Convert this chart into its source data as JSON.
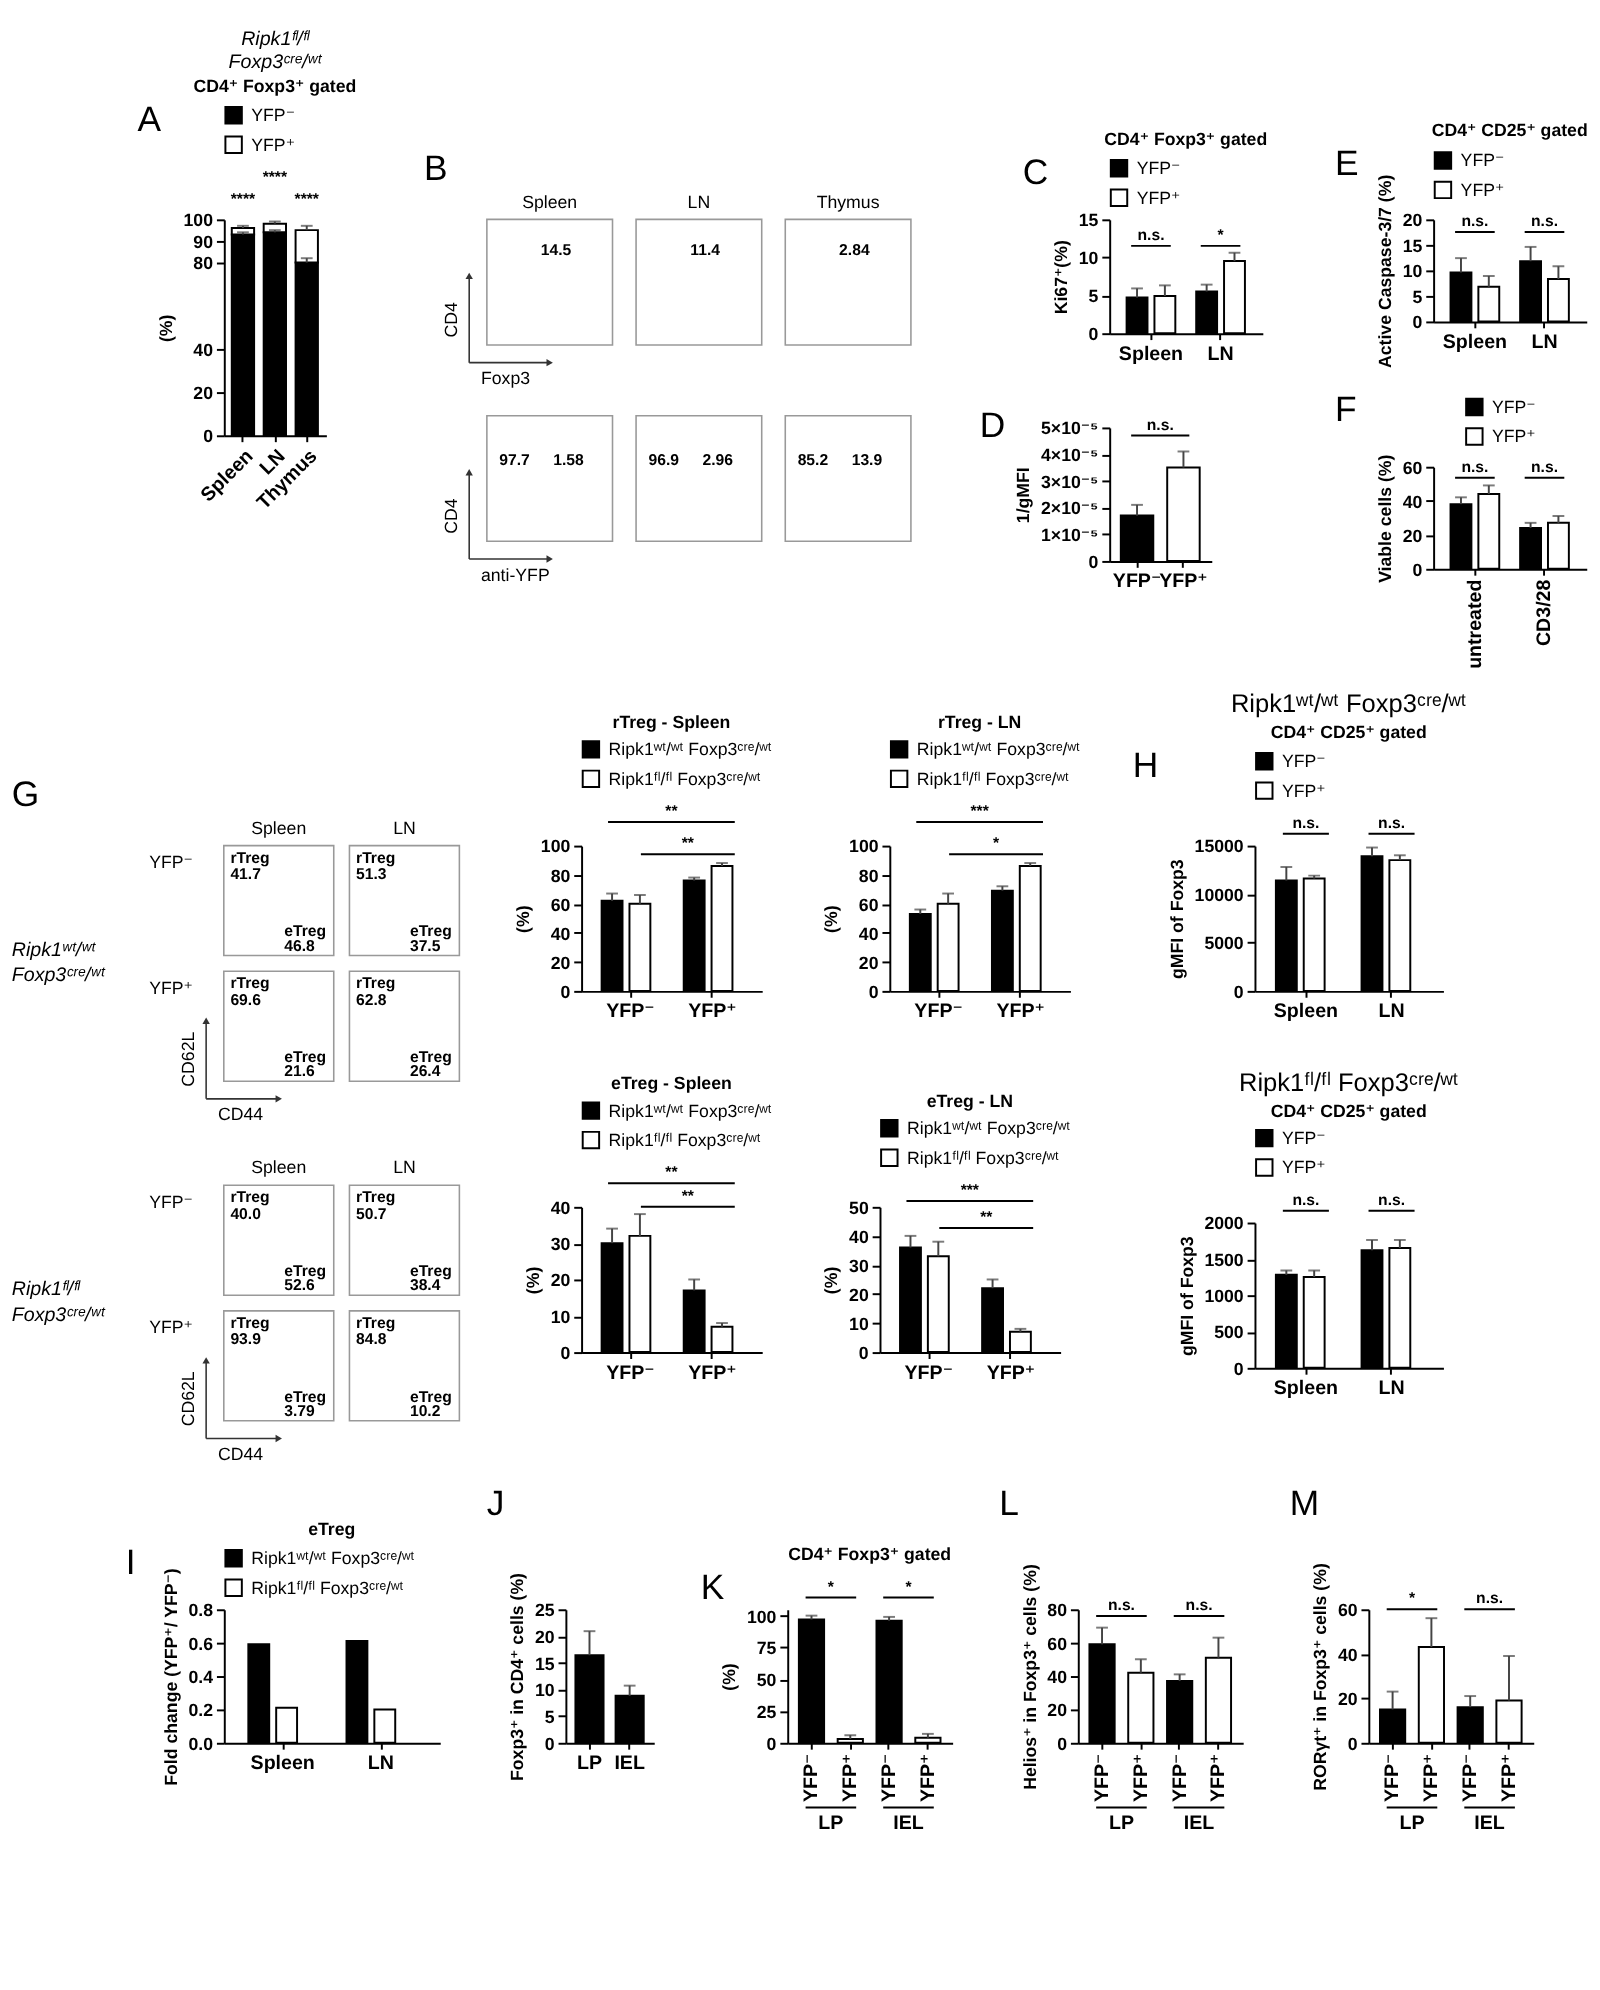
{
  "chart_data": [
    {
      "type": "bar",
      "title": "Ripk1ᶠˡ/ᶠˡ Foxp3ᶜʳᵉ/ʷᵗ",
      "subtitle": "CD4⁺ Foxp3⁺ gated",
      "ylabel": "(%)",
      "categories": [
        "Spleen",
        "LN",
        "Thymus"
      ],
      "stacked": true,
      "series": [
        {
          "name": "YFP⁻",
          "color": "#000000",
          "values": [
            93,
            94,
            80
          ],
          "errors": [
            [
              93,
              94
            ],
            [
              94,
              95
            ],
            [
              80,
              82
            ]
          ]
        },
        {
          "name": "YFP⁺",
          "color": "#ffffff",
          "values": [
            3,
            4,
            15
          ],
          "errors": [
            [
              96,
              97
            ],
            [
              98,
              99
            ],
            [
              95,
              97
            ]
          ]
        }
      ],
      "ylim": [
        0,
        100
      ],
      "yticks": [
        0,
        20,
        40,
        80,
        90,
        100
      ],
      "legend": "top",
      "annotations": [
        "A",
        "****",
        "****",
        "****"
      ]
    },
    {
      "type": "other",
      "annotations": [
        "B",
        "Spleen",
        "LN",
        "Thymus",
        "14.5",
        "11.4",
        "2.84",
        "CD4",
        "Foxp3",
        "97.7",
        "1.58",
        "96.9",
        "2.96",
        "85.2",
        "13.9",
        "CD4",
        "anti-YFP"
      ]
    },
    {
      "type": "bar",
      "title": "CD4⁺ Foxp3⁺ gated",
      "ylabel": "Ki67⁺(%)",
      "categories": [
        "Spleen",
        "LN"
      ],
      "series": [
        {
          "name": "YFP⁻",
          "color": "#000000",
          "values": [
            4.7,
            5.5
          ],
          "errors": [
            [
              4.7,
              5.9
            ],
            [
              5.5,
              6.4
            ]
          ]
        },
        {
          "name": "YFP⁺",
          "color": "#ffffff",
          "values": [
            4.9,
            9.5
          ],
          "errors": [
            [
              4.9,
              6.3
            ],
            [
              9.5,
              10.6
            ]
          ]
        }
      ],
      "ylim": [
        0,
        15
      ],
      "yticks": [
        0,
        5,
        10,
        15
      ],
      "legend": "top",
      "annotations": [
        "C",
        "n.s.",
        "*"
      ]
    },
    {
      "type": "bar",
      "ylabel": "1/gMFI",
      "categories": [
        "YFP⁻",
        "YFP⁺"
      ],
      "series": [
        {
          "colors": [
            "#000000",
            "#ffffff"
          ],
          "values": [
            1.7e-05,
            3.5e-05
          ],
          "errors": [
            [
              1.7e-05,
              2.1e-05
            ],
            [
              3.5e-05,
              4.1e-05
            ]
          ]
        }
      ],
      "ylim": [
        0,
        5e-05
      ],
      "yticks": [
        0,
        {
          "value": 1e-05,
          "label": "1×10⁻⁵"
        },
        {
          "value": 2e-05,
          "label": "2×10⁻⁵"
        },
        {
          "value": 3e-05,
          "label": "3×10⁻⁵"
        },
        {
          "value": 4e-05,
          "label": "4×10⁻⁵"
        },
        {
          "value": 5e-05,
          "label": "5×10⁻⁵"
        }
      ],
      "annotations": [
        "D",
        "n.s."
      ]
    },
    {
      "type": "bar",
      "title": "CD4⁺ CD25⁺ gated",
      "ylabel": "Active Caspase-3/7 (%)",
      "categories": [
        "Spleen",
        "LN"
      ],
      "series": [
        {
          "name": "YFP⁻",
          "color": "#000000",
          "values": [
            9.6,
            11.8
          ],
          "errors": [
            [
              9.6,
              12.4
            ],
            [
              11.8,
              14.6
            ]
          ]
        },
        {
          "name": "YFP⁺",
          "color": "#ffffff",
          "values": [
            6.8,
            8.3
          ],
          "errors": [
            [
              6.8,
              8.9
            ],
            [
              8.3,
              10.8
            ]
          ]
        }
      ],
      "ylim": [
        0,
        20
      ],
      "yticks": [
        0,
        5,
        10,
        15,
        20
      ],
      "legend": "top",
      "annotations": [
        "E",
        "n.s.",
        "n.s."
      ]
    },
    {
      "type": "bar",
      "ylabel": "Viable cells (%)",
      "categories": [
        "untreated",
        "CD3/28"
      ],
      "series": [
        {
          "name": "YFP⁻",
          "color": "#000000",
          "values": [
            38,
            24
          ],
          "errors": [
            [
              38,
              42
            ],
            [
              24,
              27
            ]
          ]
        },
        {
          "name": "YFP⁺",
          "color": "#ffffff",
          "values": [
            44,
            27
          ],
          "errors": [
            [
              44,
              49
            ],
            [
              27,
              31
            ]
          ]
        }
      ],
      "ylim": [
        0,
        60
      ],
      "yticks": [
        0,
        20,
        40,
        60
      ],
      "legend": "top",
      "annotations": [
        "F",
        "n.s.",
        "n.s."
      ]
    },
    {
      "type": "other",
      "annotations": [
        "G",
        "Spleen",
        "LN",
        "Ripk1ʷᵗ/ʷᵗ Foxp3ᶜʳᵉ/ʷᵗ",
        "YFP⁻",
        "rTreg",
        "41.7",
        "eTreg",
        "46.8",
        "rTreg",
        "51.3",
        "eTreg",
        "37.5",
        "YFP⁺",
        "rTreg",
        "69.6",
        "eTreg",
        "21.6",
        "rTreg",
        "62.8",
        "eTreg",
        "26.4",
        "CD62L",
        "CD44"
      ]
    },
    {
      "type": "other",
      "annotations": [
        "Spleen",
        "LN",
        "Ripk1ᶠˡ/ᶠˡ Foxp3ᶜʳᵉ/ʷᵗ",
        "YFP⁻",
        "rTreg",
        "40.0",
        "eTreg",
        "52.6",
        "rTreg",
        "50.7",
        "eTreg",
        "38.4",
        "YFP⁺",
        "rTreg",
        "93.9",
        "eTreg",
        "3.79",
        "rTreg",
        "84.8",
        "eTreg",
        "10.2",
        "CD62L",
        "CD44"
      ]
    },
    {
      "type": "bar",
      "title": "rTreg - Spleen",
      "ylabel": "(%)",
      "categories": [
        "YFP⁻",
        "YFP⁺"
      ],
      "series": [
        {
          "name": "Ripk1ʷᵗ/ʷᵗ Foxp3ᶜʳᵉ/ʷᵗ",
          "color": "#000000",
          "values": [
            62,
            76
          ],
          "errors": [
            [
              62,
              67
            ],
            [
              76,
              78
            ]
          ]
        },
        {
          "name": "Ripk1ᶠˡ/ᶠˡ Foxp3ᶜʳᵉ/ʷᵗ",
          "color": "#ffffff",
          "values": [
            60,
            86
          ],
          "errors": [
            [
              60,
              66
            ],
            [
              86,
              88
            ]
          ]
        }
      ],
      "ylim": [
        0,
        100
      ],
      "yticks": [
        0,
        20,
        40,
        60,
        80,
        100
      ],
      "legend": "top",
      "annotations": [
        "**",
        "**"
      ]
    },
    {
      "type": "bar",
      "title": "rTreg - LN",
      "ylabel": "(%)",
      "categories": [
        "YFP⁻",
        "YFP⁺"
      ],
      "series": [
        {
          "name": "Ripk1ʷᵗ/ʷᵗ Foxp3ᶜʳᵉ/ʷᵗ",
          "color": "#000000",
          "values": [
            53,
            69
          ],
          "errors": [
            [
              53,
              56
            ],
            [
              69,
              72
            ]
          ]
        },
        {
          "name": "Ripk1ᶠˡ/ᶠˡ Foxp3ᶜʳᵉ/ʷᵗ",
          "color": "#ffffff",
          "values": [
            60,
            86
          ],
          "errors": [
            [
              60,
              67
            ],
            [
              86,
              88
            ]
          ]
        }
      ],
      "ylim": [
        0,
        100
      ],
      "yticks": [
        0,
        20,
        40,
        60,
        80,
        100
      ],
      "legend": "top",
      "annotations": [
        "***",
        "*"
      ]
    },
    {
      "type": "bar",
      "title": "eTreg - Spleen",
      "ylabel": "(%)",
      "categories": [
        "YFP⁻",
        "YFP⁺"
      ],
      "series": [
        {
          "name": "Ripk1ʷᵗ/ʷᵗ Foxp3ᶜʳᵉ/ʷᵗ",
          "color": "#000000",
          "values": [
            30,
            17
          ],
          "errors": [
            [
              30,
              34
            ],
            [
              17,
              20
            ]
          ]
        },
        {
          "name": "Ripk1ᶠˡ/ᶠˡ Foxp3ᶜʳᵉ/ʷᵗ",
          "color": "#ffffff",
          "values": [
            32,
            7
          ],
          "errors": [
            [
              32,
              38
            ],
            [
              7,
              8
            ]
          ]
        }
      ],
      "ylim": [
        0,
        40
      ],
      "yticks": [
        0,
        10,
        20,
        30,
        40
      ],
      "legend": "top",
      "annotations": [
        "**",
        "**"
      ]
    },
    {
      "type": "bar",
      "title": "eTreg - LN",
      "ylabel": "(%)",
      "categories": [
        "YFP⁻",
        "YFP⁺"
      ],
      "series": [
        {
          "name": "Ripk1ʷᵗ/ʷᵗ Foxp3ᶜʳᵉ/ʷᵗ",
          "color": "#000000",
          "values": [
            36,
            22
          ],
          "errors": [
            [
              36,
              40
            ],
            [
              22,
              25
            ]
          ]
        },
        {
          "name": "Ripk1ᶠˡ/ᶠˡ Foxp3ᶜʳᵉ/ʷᵗ",
          "color": "#ffffff",
          "values": [
            33,
            7
          ],
          "errors": [
            [
              33,
              38
            ],
            [
              7,
              8
            ]
          ]
        }
      ],
      "ylim": [
        0,
        50
      ],
      "yticks": [
        0,
        10,
        20,
        30,
        40,
        50
      ],
      "legend": "top",
      "annotations": [
        "***",
        "**"
      ]
    },
    {
      "type": "bar",
      "title": "Ripk1ʷᵗ/ʷᵗ Foxp3ᶜʳᵉ/ʷᵗ",
      "subtitle": "CD4⁺ CD25⁺ gated",
      "ylabel": "gMFI of Foxp3",
      "categories": [
        "Spleen",
        "LN"
      ],
      "series": [
        {
          "name": "YFP⁻",
          "color": "#000000",
          "values": [
            11400,
            13900
          ],
          "errors": [
            [
              11400,
              12800
            ],
            [
              13900,
              14800
            ]
          ]
        },
        {
          "name": "YFP⁺",
          "color": "#ffffff",
          "values": [
            11600,
            13500
          ],
          "errors": [
            [
              11600,
              11900
            ],
            [
              13500,
              14000
            ]
          ]
        }
      ],
      "ylim": [
        0,
        15000
      ],
      "yticks": [
        0,
        5000,
        10000,
        15000
      ],
      "legend": "top",
      "annotations": [
        "H",
        "n.s.",
        "n.s."
      ]
    },
    {
      "type": "bar",
      "title": "Ripk1ᶠˡ/ᶠˡ Foxp3ᶜʳᵉ/ʷᵗ",
      "subtitle": "CD4⁺ CD25⁺ gated",
      "ylabel": "gMFI of Foxp3",
      "categories": [
        "Spleen",
        "LN"
      ],
      "series": [
        {
          "name": "YFP⁻",
          "color": "#000000",
          "values": [
            1280,
            1620
          ],
          "errors": [
            [
              1280,
              1340
            ],
            [
              1620,
              1760
            ]
          ]
        },
        {
          "name": "YFP⁺",
          "color": "#ffffff",
          "values": [
            1250,
            1650
          ],
          "errors": [
            [
              1250,
              1340
            ],
            [
              1650,
              1760
            ]
          ]
        }
      ],
      "ylim": [
        0,
        2000
      ],
      "yticks": [
        0,
        500,
        1000,
        1500,
        2000
      ],
      "legend": "top",
      "annotations": [
        "n.s.",
        "n.s."
      ]
    },
    {
      "type": "bar",
      "title": "eTreg",
      "ylabel": "Fold change (YFP⁺/ YFP⁻)",
      "categories": [
        "Spleen",
        "LN"
      ],
      "series": [
        {
          "name": "Ripk1ʷᵗ/ʷᵗ Foxp3ᶜʳᵉ/ʷᵗ",
          "color": "#000000",
          "values": [
            0.59,
            0.61
          ]
        },
        {
          "name": "Ripk1ᶠˡ/ᶠˡ Foxp3ᶜʳᵉ/ʷᵗ",
          "color": "#ffffff",
          "values": [
            0.21,
            0.2
          ]
        }
      ],
      "ylim": [
        0,
        0.8
      ],
      "yticks": [
        {
          "value": 0,
          "label": "0.0"
        },
        0.2,
        0.4,
        0.6,
        0.8
      ],
      "legend": "top",
      "annotations": [
        "I"
      ]
    },
    {
      "type": "bar",
      "ylabel": "Foxp3⁺ in CD4⁺ cells (%)",
      "categories": [
        "LP",
        "IEL"
      ],
      "series": [
        {
          "color": "#000000",
          "values": [
            16.4,
            8.8
          ],
          "errors": [
            [
              16.4,
              20.9
            ],
            [
              8.8,
              10.7
            ]
          ]
        }
      ],
      "ylim": [
        0,
        25
      ],
      "yticks": [
        0,
        5,
        10,
        15,
        20,
        25
      ],
      "annotations": [
        "J"
      ]
    },
    {
      "type": "bar",
      "title": "CD4⁺ Foxp3⁺ gated",
      "ylabel": "(%)",
      "categories": [
        "YFP⁻",
        "YFP⁺",
        "YFP⁻",
        "YFP⁺"
      ],
      "series": [
        {
          "colors": [
            "#000000",
            "#ffffff",
            "#000000",
            "#ffffff"
          ],
          "values": [
            97,
            3,
            96,
            4
          ],
          "errors": [
            [
              97,
              100
            ],
            [
              3,
              6
            ],
            [
              96,
              99
            ],
            [
              4,
              7
            ]
          ]
        }
      ],
      "ylim": [
        0,
        105
      ],
      "yticks": [
        0,
        25,
        50,
        75,
        100
      ],
      "annotations": [
        "K",
        "*",
        "*",
        "LP",
        "IEL"
      ]
    },
    {
      "type": "bar",
      "ylabel": "Helios⁺ in Foxp3⁺ cells (%)",
      "categories": [
        "YFP⁻",
        "YFP⁺",
        "YFP⁻",
        "YFP⁺"
      ],
      "series": [
        {
          "colors": [
            "#000000",
            "#ffffff",
            "#000000",
            "#ffffff"
          ],
          "values": [
            59,
            42,
            37,
            51
          ],
          "errors": [
            [
              59,
              69
            ],
            [
              42,
              50
            ],
            [
              37,
              41
            ],
            [
              51,
              63
            ]
          ]
        }
      ],
      "ylim": [
        0,
        80
      ],
      "yticks": [
        0,
        20,
        40,
        60,
        80
      ],
      "annotations": [
        "L",
        "n.s.",
        "n.s.",
        "LP",
        "IEL"
      ]
    },
    {
      "type": "bar",
      "ylabel": "RORγt⁺ in Foxp3⁺ cells (%)",
      "categories": [
        "YFP⁻",
        "YFP⁺",
        "YFP⁻",
        "YFP⁺"
      ],
      "series": [
        {
          "colors": [
            "#000000",
            "#ffffff",
            "#000000",
            "#ffffff"
          ],
          "values": [
            15,
            43,
            16,
            19
          ],
          "errors": [
            [
              15,
              23
            ],
            [
              43,
              56
            ],
            [
              16,
              21
            ],
            [
              19,
              39
            ]
          ]
        }
      ],
      "ylim": [
        0,
        60
      ],
      "yticks": [
        0,
        20,
        40,
        60
      ],
      "annotations": [
        "M",
        "*",
        "n.s.",
        "LP",
        "IEL"
      ]
    }
  ]
}
